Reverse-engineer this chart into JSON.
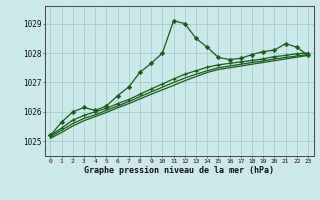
{
  "title": "Graphe pression niveau de la mer (hPa)",
  "bg_color": "#cce8e8",
  "grid_color": "#aacccc",
  "line_color": "#1a5c1a",
  "x_labels": [
    "0",
    "1",
    "2",
    "3",
    "4",
    "5",
    "6",
    "7",
    "8",
    "9",
    "10",
    "11",
    "12",
    "13",
    "14",
    "15",
    "16",
    "17",
    "18",
    "19",
    "20",
    "21",
    "22",
    "23"
  ],
  "ylim": [
    1024.5,
    1029.6
  ],
  "yticks": [
    1025,
    1026,
    1027,
    1028,
    1029
  ],
  "line1": [
    1025.2,
    1025.65,
    1026.0,
    1026.15,
    1026.05,
    1026.2,
    1026.55,
    1026.85,
    1027.35,
    1027.65,
    1028.0,
    1029.1,
    1029.0,
    1028.5,
    1028.2,
    1027.85,
    1027.78,
    1027.82,
    1027.95,
    1028.05,
    1028.1,
    1028.32,
    1028.2,
    1027.92
  ],
  "line2": [
    1025.2,
    1025.45,
    1025.72,
    1025.88,
    1026.0,
    1026.12,
    1026.28,
    1026.42,
    1026.6,
    1026.78,
    1026.95,
    1027.12,
    1027.28,
    1027.4,
    1027.52,
    1027.6,
    1027.65,
    1027.7,
    1027.75,
    1027.8,
    1027.88,
    1027.92,
    1027.98,
    1028.0
  ],
  "line3": [
    1025.15,
    1025.38,
    1025.6,
    1025.78,
    1025.9,
    1026.05,
    1026.2,
    1026.35,
    1026.52,
    1026.68,
    1026.84,
    1027.0,
    1027.15,
    1027.28,
    1027.4,
    1027.5,
    1027.56,
    1027.62,
    1027.68,
    1027.73,
    1027.8,
    1027.85,
    1027.9,
    1027.95
  ],
  "line4": [
    1025.1,
    1025.3,
    1025.52,
    1025.7,
    1025.84,
    1025.98,
    1026.14,
    1026.28,
    1026.44,
    1026.6,
    1026.75,
    1026.9,
    1027.06,
    1027.2,
    1027.34,
    1027.44,
    1027.5,
    1027.56,
    1027.62,
    1027.68,
    1027.74,
    1027.8,
    1027.86,
    1027.92
  ]
}
